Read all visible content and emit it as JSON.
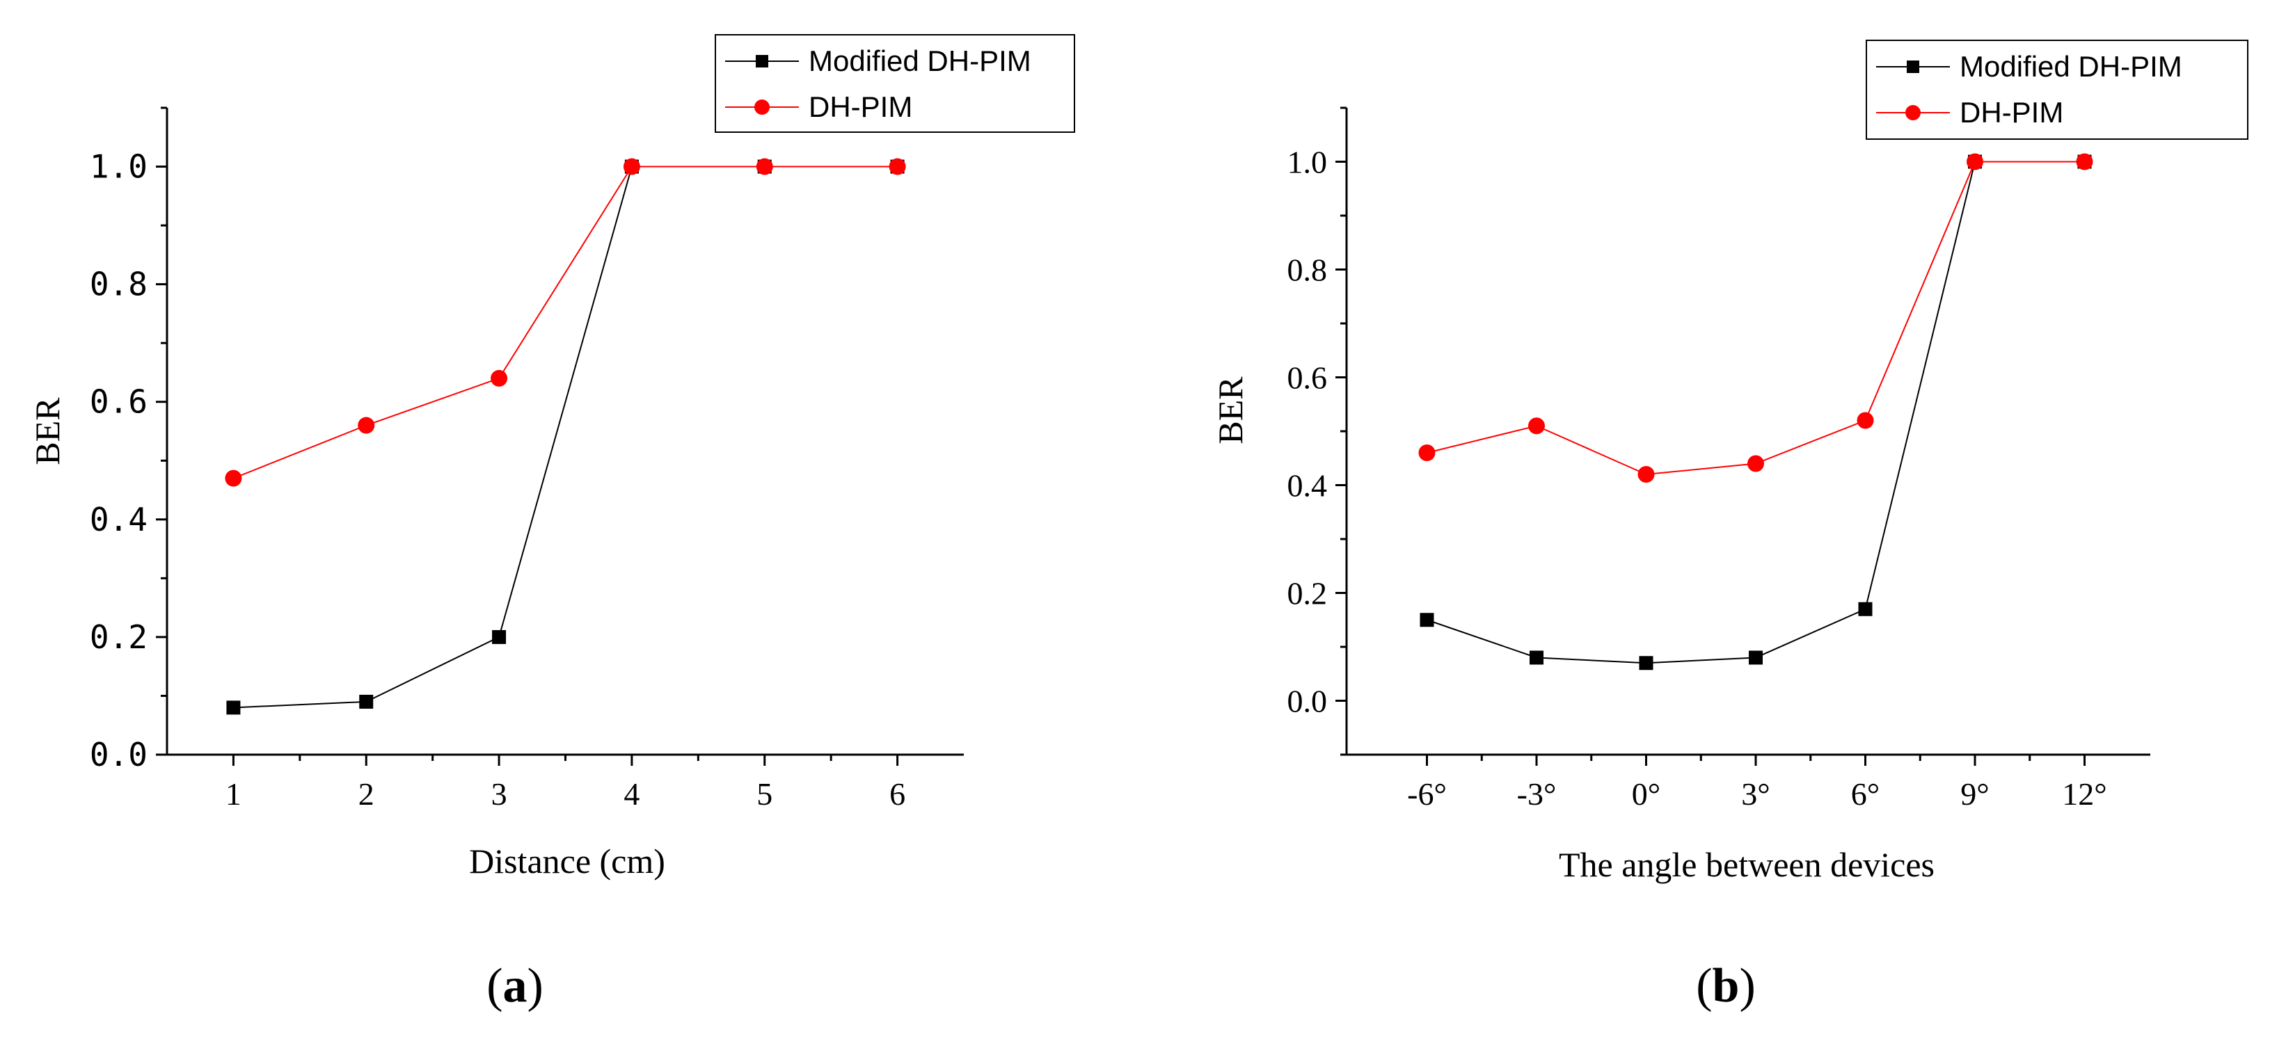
{
  "chart_data": [
    {
      "type": "line",
      "panel_label": "a",
      "xlabel": "Distance (cm)",
      "ylabel": "BER",
      "x": [
        1,
        2,
        3,
        4,
        5,
        6
      ],
      "x_tick_labels": [
        "1",
        "2",
        "3",
        "4",
        "5",
        "6"
      ],
      "xlim": [
        0.5,
        6.5
      ],
      "ylim": [
        0,
        1.1
      ],
      "y_ticks": [
        0.0,
        0.2,
        0.4,
        0.6,
        0.8,
        1.0
      ],
      "y_tick_labels": [
        "0.0",
        "0.2",
        "0.4",
        "0.6",
        "0.8",
        "1.0"
      ],
      "legend_position": "top-right",
      "series": [
        {
          "name": "Modified DH-PIM",
          "color": "#000000",
          "marker": "square",
          "values": [
            0.08,
            0.09,
            0.2,
            1.0,
            1.0,
            1.0
          ]
        },
        {
          "name": "DH-PIM",
          "color": "#ff0000",
          "marker": "circle",
          "values": [
            0.47,
            0.56,
            0.64,
            1.0,
            1.0,
            1.0
          ]
        }
      ]
    },
    {
      "type": "line",
      "panel_label": "b",
      "xlabel": "The angle between devices",
      "ylabel": "BER",
      "x": [
        -6,
        -3,
        0,
        3,
        6,
        9,
        12
      ],
      "x_tick_labels": [
        "-6°",
        "-3°",
        "0°",
        "3°",
        "6°",
        "9°",
        "12°"
      ],
      "xlim": [
        -8.2,
        13.8
      ],
      "ylim": [
        -0.1,
        1.1
      ],
      "y_ticks": [
        0.0,
        0.2,
        0.4,
        0.6,
        0.8,
        1.0
      ],
      "y_tick_labels": [
        "0.0",
        "0.2",
        "0.4",
        "0.6",
        "0.8",
        "1.0"
      ],
      "legend_position": "top-right",
      "series": [
        {
          "name": "Modified DH-PIM",
          "color": "#000000",
          "marker": "square",
          "values": [
            0.15,
            0.08,
            0.07,
            0.08,
            0.17,
            1.0,
            1.0
          ]
        },
        {
          "name": "DH-PIM",
          "color": "#ff0000",
          "marker": "circle",
          "values": [
            0.46,
            0.51,
            0.42,
            0.44,
            0.52,
            1.0,
            1.0
          ]
        }
      ]
    }
  ]
}
